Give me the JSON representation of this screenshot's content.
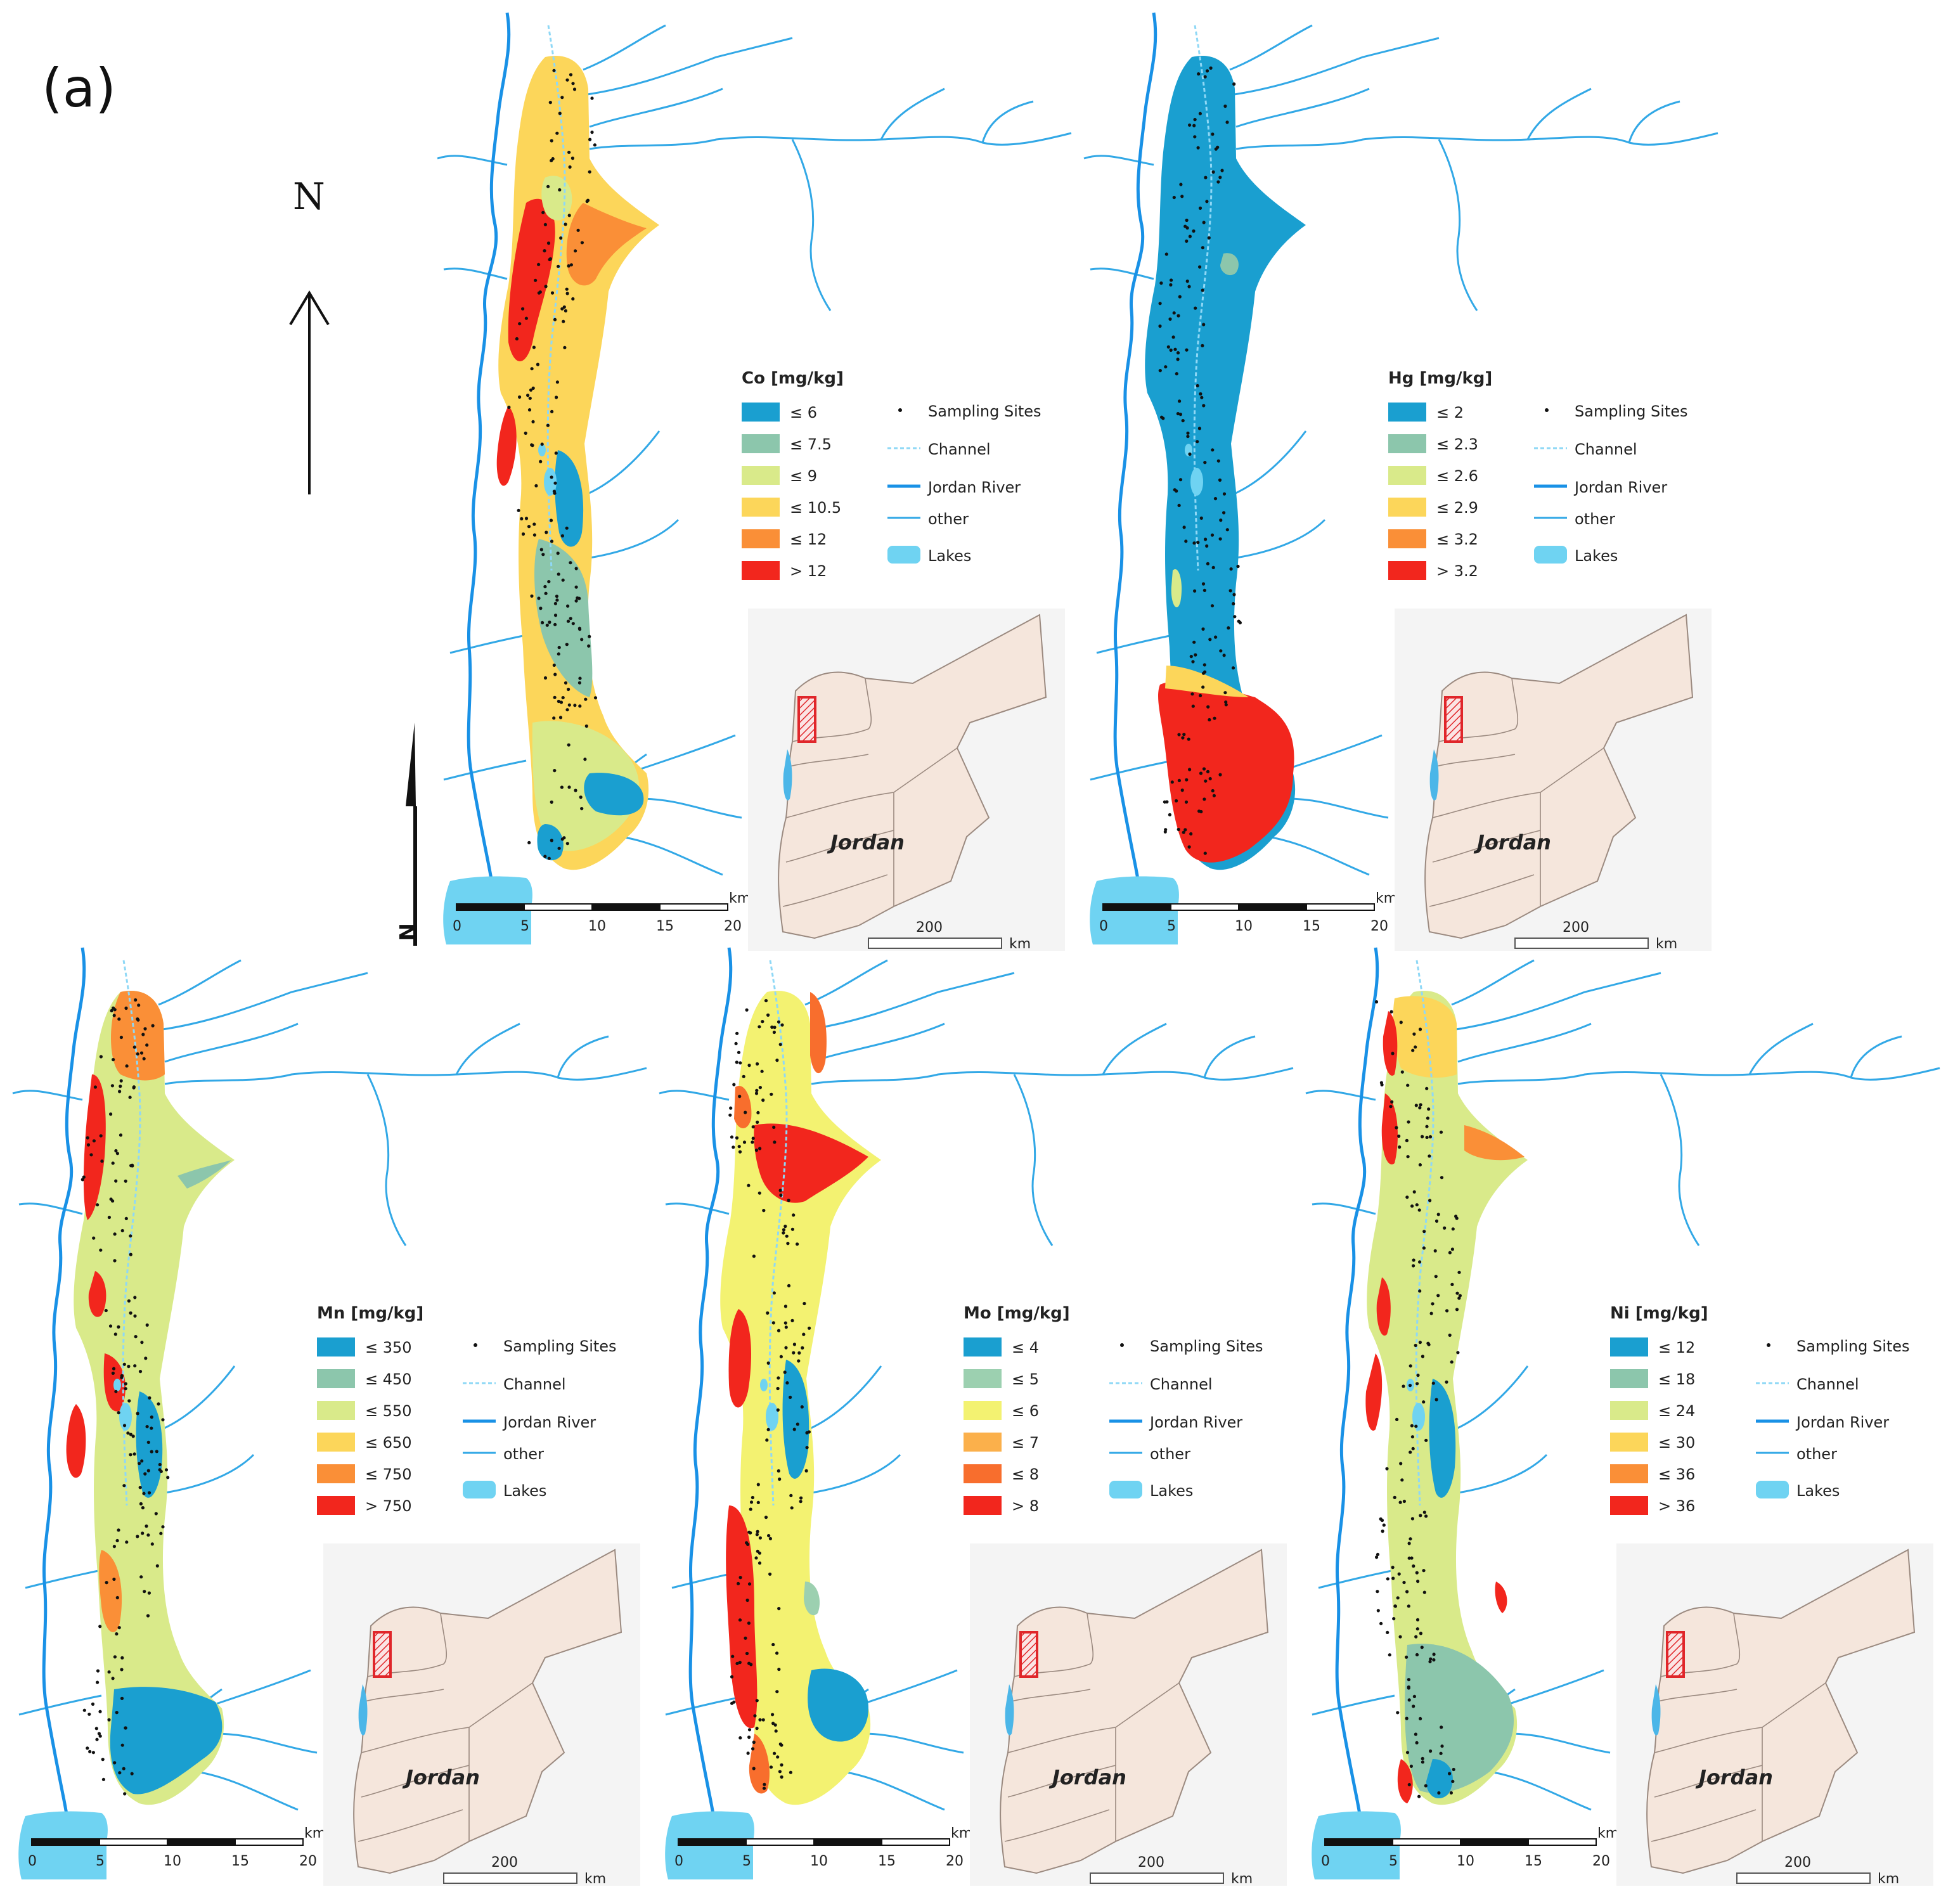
{
  "figure_label": "(a)",
  "north_label": "N",
  "north_arrow_label": "N",
  "colors": {
    "water": "#32a8e6",
    "lake": "#6fd3f2",
    "inset_land": "#f5e6dc",
    "inset_bg": "#f4f4f4",
    "highlight_box": "#e0262a",
    "classes": [
      "#1a9fd0",
      "#8cc6ac",
      "#d9ea8a",
      "#fcd65a",
      "#fa8f37",
      "#f2261d"
    ],
    "mo_classes": [
      "#1a9fd0",
      "#9cd0b0",
      "#f3f271",
      "#fbb04b",
      "#f86e2d",
      "#f2261d"
    ]
  },
  "legend_common": {
    "sampling_sites": "Sampling Sites",
    "channel": "Channel",
    "jordan_river": "Jordan River",
    "other": "other",
    "lakes": "Lakes"
  },
  "inset": {
    "country": "Jordan",
    "scale_value": "200",
    "scale_unit": "km"
  },
  "scale_bar": {
    "ticks": [
      "0",
      "5",
      "10",
      "15",
      "20"
    ],
    "unit": "km"
  },
  "panels": [
    {
      "id": "co",
      "title": "Co [mg/kg]",
      "classes": [
        "≤ 6",
        "≤ 7.5",
        "≤ 9",
        "≤ 10.5",
        "≤ 12",
        "> 12"
      ]
    },
    {
      "id": "hg",
      "title": "Hg [mg/kg]",
      "classes": [
        "≤ 2",
        "≤ 2.3",
        "≤ 2.6",
        "≤ 2.9",
        "≤ 3.2",
        "> 3.2"
      ]
    },
    {
      "id": "mn",
      "title": "Mn [mg/kg]",
      "classes": [
        "≤ 350",
        "≤ 450",
        "≤ 550",
        "≤ 650",
        "≤ 750",
        "> 750"
      ]
    },
    {
      "id": "mo",
      "title": "Mo [mg/kg]",
      "classes": [
        "≤ 4",
        "≤ 5",
        "≤ 6",
        "≤ 7",
        "≤ 8",
        "> 8"
      ]
    },
    {
      "id": "ni",
      "title": "Ni [mg/kg]",
      "classes": [
        "≤ 12",
        "≤ 18",
        "≤ 24",
        "≤ 30",
        "≤ 36",
        "> 36"
      ]
    }
  ]
}
